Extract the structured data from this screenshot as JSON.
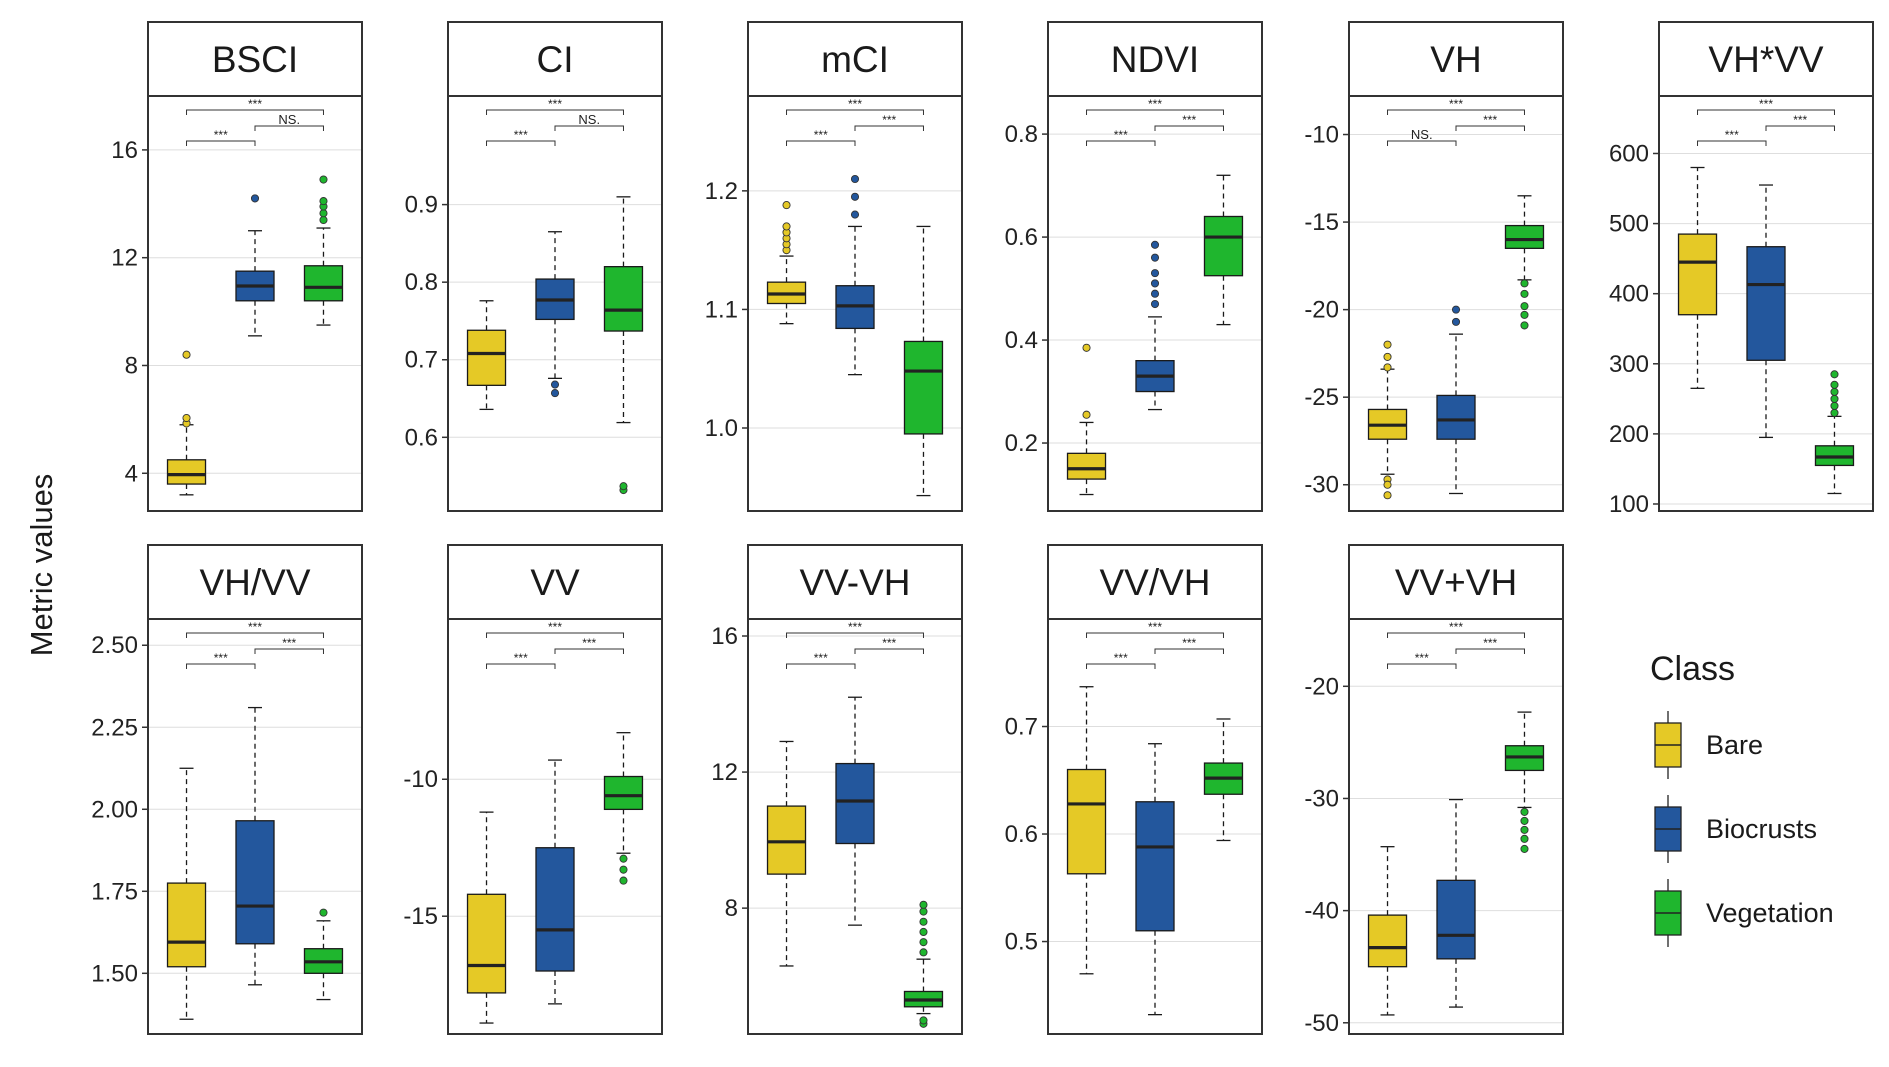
{
  "chart_data": {
    "type": "box",
    "ylabel": "Metric values",
    "legend": {
      "title": "Class",
      "position": "right",
      "entries": [
        {
          "label": "Bare",
          "color": "#E5C926"
        },
        {
          "label": "Biocrusts",
          "color": "#23579D"
        },
        {
          "label": "Vegetation",
          "color": "#1FB62E"
        }
      ]
    },
    "significance_labels": {
      "strong": "***",
      "ns": "NS."
    },
    "panels": [
      {
        "title": "BSCI",
        "ylim": [
          2.6,
          18.0
        ],
        "ticks": [
          4,
          8,
          12,
          16
        ],
        "tick_labels": [
          "4",
          "8",
          "12",
          "16"
        ],
        "boxes": [
          {
            "class": "Bare",
            "q1": 3.6,
            "median": 3.95,
            "q3": 4.5,
            "whisker_low": 3.2,
            "whisker_high": 5.8,
            "outliers": [
              5.85,
              6.05,
              8.4
            ]
          },
          {
            "class": "Biocrusts",
            "q1": 10.4,
            "median": 10.95,
            "q3": 11.5,
            "whisker_low": 9.1,
            "whisker_high": 13.0,
            "outliers": [
              14.2
            ]
          },
          {
            "class": "Vegetation",
            "q1": 10.4,
            "median": 10.9,
            "q3": 11.7,
            "whisker_low": 9.5,
            "whisker_high": 13.1,
            "outliers": [
              13.4,
              13.65,
              13.9,
              14.1,
              14.9
            ]
          }
        ],
        "comparisons": [
          {
            "from": 1,
            "to": 3,
            "label": "***"
          },
          {
            "from": 1,
            "to": 2,
            "label": "***"
          },
          {
            "from": 2,
            "to": 3,
            "label": "NS."
          }
        ]
      },
      {
        "title": "CI",
        "ylim": [
          0.505,
          1.04
        ],
        "ticks": [
          0.6,
          0.7,
          0.8,
          0.9
        ],
        "tick_labels": [
          "0.6",
          "0.7",
          "0.8",
          "0.9"
        ],
        "boxes": [
          {
            "class": "Bare",
            "q1": 0.667,
            "median": 0.708,
            "q3": 0.738,
            "whisker_low": 0.636,
            "whisker_high": 0.776,
            "outliers": []
          },
          {
            "class": "Biocrusts",
            "q1": 0.752,
            "median": 0.777,
            "q3": 0.804,
            "whisker_low": 0.676,
            "whisker_high": 0.865,
            "outliers": [
              0.657,
              0.668
            ]
          },
          {
            "class": "Vegetation",
            "q1": 0.737,
            "median": 0.764,
            "q3": 0.82,
            "whisker_low": 0.619,
            "whisker_high": 0.91,
            "outliers": [
              0.532,
              0.537
            ]
          }
        ],
        "comparisons": [
          {
            "from": 1,
            "to": 3,
            "label": "***"
          },
          {
            "from": 1,
            "to": 2,
            "label": "***"
          },
          {
            "from": 2,
            "to": 3,
            "label": "NS."
          }
        ]
      },
      {
        "title": "mCI",
        "ylim": [
          0.93,
          1.28
        ],
        "ticks": [
          1.0,
          1.1,
          1.2
        ],
        "tick_labels": [
          "1.0",
          "1.1",
          "1.2"
        ],
        "boxes": [
          {
            "class": "Bare",
            "q1": 1.105,
            "median": 1.113,
            "q3": 1.123,
            "whisker_low": 1.088,
            "whisker_high": 1.145,
            "outliers": [
              1.15,
              1.155,
              1.16,
              1.165,
              1.17,
              1.188
            ]
          },
          {
            "class": "Biocrusts",
            "q1": 1.084,
            "median": 1.103,
            "q3": 1.12,
            "whisker_low": 1.045,
            "whisker_high": 1.17,
            "outliers": [
              1.18,
              1.195,
              1.21
            ]
          },
          {
            "class": "Vegetation",
            "q1": 0.995,
            "median": 1.048,
            "q3": 1.073,
            "whisker_low": 0.943,
            "whisker_high": 1.17,
            "outliers": []
          }
        ],
        "comparisons": [
          {
            "from": 1,
            "to": 3,
            "label": "***"
          },
          {
            "from": 1,
            "to": 2,
            "label": "***"
          },
          {
            "from": 2,
            "to": 3,
            "label": "***"
          }
        ]
      },
      {
        "title": "NDVI",
        "ylim": [
          0.068,
          0.874
        ],
        "ticks": [
          0.2,
          0.4,
          0.6,
          0.8
        ],
        "tick_labels": [
          "0.2",
          "0.4",
          "0.6",
          "0.8"
        ],
        "boxes": [
          {
            "class": "Bare",
            "q1": 0.13,
            "median": 0.15,
            "q3": 0.18,
            "whisker_low": 0.1,
            "whisker_high": 0.24,
            "outliers": [
              0.255,
              0.385
            ]
          },
          {
            "class": "Biocrusts",
            "q1": 0.3,
            "median": 0.33,
            "q3": 0.36,
            "whisker_low": 0.265,
            "whisker_high": 0.445,
            "outliers": [
              0.47,
              0.49,
              0.51,
              0.53,
              0.56,
              0.585
            ]
          },
          {
            "class": "Vegetation",
            "q1": 0.525,
            "median": 0.6,
            "q3": 0.64,
            "whisker_low": 0.43,
            "whisker_high": 0.72,
            "outliers": []
          }
        ],
        "comparisons": [
          {
            "from": 1,
            "to": 3,
            "label": "***"
          },
          {
            "from": 1,
            "to": 2,
            "label": "***"
          },
          {
            "from": 2,
            "to": 3,
            "label": "***"
          }
        ]
      },
      {
        "title": "VH",
        "ylim": [
          -31.5,
          -7.8
        ],
        "ticks": [
          -30,
          -25,
          -20,
          -15,
          -10
        ],
        "tick_labels": [
          "-30",
          "-25",
          "-20",
          "-15",
          "-10"
        ],
        "boxes": [
          {
            "class": "Bare",
            "q1": -27.4,
            "median": -26.6,
            "q3": -25.7,
            "whisker_low": -29.4,
            "whisker_high": -23.4,
            "outliers": [
              -22.0,
              -22.7,
              -23.3,
              -29.7,
              -30.0,
              -30.6
            ]
          },
          {
            "class": "Biocrusts",
            "q1": -27.4,
            "median": -26.3,
            "q3": -24.9,
            "whisker_low": -30.5,
            "whisker_high": -21.4,
            "outliers": [
              -20.0,
              -20.7
            ]
          },
          {
            "class": "Vegetation",
            "q1": -16.5,
            "median": -16.0,
            "q3": -15.2,
            "whisker_low": -18.3,
            "whisker_high": -13.5,
            "outliers": [
              -18.5,
              -19.1,
              -19.8,
              -20.3,
              -20.9
            ]
          }
        ],
        "comparisons": [
          {
            "from": 1,
            "to": 3,
            "label": "***"
          },
          {
            "from": 1,
            "to": 2,
            "label": "NS."
          },
          {
            "from": 2,
            "to": 3,
            "label": "***"
          }
        ]
      },
      {
        "title": "VH*VV",
        "ylim": [
          90,
          682
        ],
        "ticks": [
          100,
          200,
          300,
          400,
          500,
          600
        ],
        "tick_labels": [
          "100",
          "200",
          "300",
          "400",
          "500",
          "600"
        ],
        "boxes": [
          {
            "class": "Bare",
            "q1": 370,
            "median": 445,
            "q3": 485,
            "whisker_low": 265,
            "whisker_high": 580,
            "outliers": []
          },
          {
            "class": "Biocrusts",
            "q1": 305,
            "median": 413,
            "q3": 467,
            "whisker_low": 195,
            "whisker_high": 555,
            "outliers": []
          },
          {
            "class": "Vegetation",
            "q1": 155,
            "median": 167,
            "q3": 183,
            "whisker_low": 115,
            "whisker_high": 225,
            "outliers": [
              230,
              240,
              250,
              260,
              270,
              285
            ]
          }
        ],
        "comparisons": [
          {
            "from": 1,
            "to": 3,
            "label": "***"
          },
          {
            "from": 1,
            "to": 2,
            "label": "***"
          },
          {
            "from": 2,
            "to": 3,
            "label": "***"
          }
        ]
      },
      {
        "title": "VH/VV",
        "ylim": [
          1.315,
          2.58
        ],
        "ticks": [
          1.5,
          1.75,
          2.0,
          2.25,
          2.5
        ],
        "tick_labels": [
          "1.50",
          "1.75",
          "2.00",
          "2.25",
          "2.50"
        ],
        "boxes": [
          {
            "class": "Bare",
            "q1": 1.52,
            "median": 1.595,
            "q3": 1.775,
            "whisker_low": 1.36,
            "whisker_high": 2.125,
            "outliers": []
          },
          {
            "class": "Biocrusts",
            "q1": 1.59,
            "median": 1.705,
            "q3": 1.965,
            "whisker_low": 1.465,
            "whisker_high": 2.31,
            "outliers": []
          },
          {
            "class": "Vegetation",
            "q1": 1.5,
            "median": 1.535,
            "q3": 1.575,
            "whisker_low": 1.42,
            "whisker_high": 1.66,
            "outliers": [
              1.685
            ]
          }
        ],
        "comparisons": [
          {
            "from": 1,
            "to": 3,
            "label": "***"
          },
          {
            "from": 1,
            "to": 2,
            "label": "***"
          },
          {
            "from": 2,
            "to": 3,
            "label": "***"
          }
        ]
      },
      {
        "title": "VV",
        "ylim": [
          -19.3,
          -4.15
        ],
        "ticks": [
          -15,
          -10
        ],
        "tick_labels": [
          "-15",
          "-10"
        ],
        "boxes": [
          {
            "class": "Bare",
            "q1": -17.8,
            "median": -16.8,
            "q3": -14.2,
            "whisker_low": -18.9,
            "whisker_high": -11.2,
            "outliers": []
          },
          {
            "class": "Biocrusts",
            "q1": -17.0,
            "median": -15.5,
            "q3": -12.5,
            "whisker_low": -18.2,
            "whisker_high": -9.3,
            "outliers": []
          },
          {
            "class": "Vegetation",
            "q1": -11.1,
            "median": -10.6,
            "q3": -9.9,
            "whisker_low": -12.7,
            "whisker_high": -8.3,
            "outliers": [
              -12.9,
              -13.3,
              -13.7
            ]
          }
        ],
        "comparisons": [
          {
            "from": 1,
            "to": 3,
            "label": "***"
          },
          {
            "from": 1,
            "to": 2,
            "label": "***"
          },
          {
            "from": 2,
            "to": 3,
            "label": "***"
          }
        ]
      },
      {
        "title": "VV-VH",
        "ylim": [
          4.3,
          16.5
        ],
        "ticks": [
          8,
          12,
          16
        ],
        "tick_labels": [
          "8",
          "12",
          "16"
        ],
        "boxes": [
          {
            "class": "Bare",
            "q1": 9.0,
            "median": 9.95,
            "q3": 11.0,
            "whisker_low": 6.3,
            "whisker_high": 12.9,
            "outliers": []
          },
          {
            "class": "Biocrusts",
            "q1": 9.9,
            "median": 11.15,
            "q3": 12.25,
            "whisker_low": 7.5,
            "whisker_high": 14.2,
            "outliers": []
          },
          {
            "class": "Vegetation",
            "q1": 5.1,
            "median": 5.3,
            "q3": 5.55,
            "whisker_low": 4.9,
            "whisker_high": 6.5,
            "outliers": [
              4.6,
              4.7,
              6.7,
              7.0,
              7.3,
              7.6,
              7.9,
              8.1
            ]
          }
        ],
        "comparisons": [
          {
            "from": 1,
            "to": 3,
            "label": "***"
          },
          {
            "from": 1,
            "to": 2,
            "label": "***"
          },
          {
            "from": 2,
            "to": 3,
            "label": "***"
          }
        ]
      },
      {
        "title": "VV/VH",
        "ylim": [
          0.414,
          0.8
        ],
        "ticks": [
          0.5,
          0.6,
          0.7
        ],
        "tick_labels": [
          "0.5",
          "0.6",
          "0.7"
        ],
        "boxes": [
          {
            "class": "Bare",
            "q1": 0.563,
            "median": 0.628,
            "q3": 0.66,
            "whisker_low": 0.47,
            "whisker_high": 0.737,
            "outliers": []
          },
          {
            "class": "Biocrusts",
            "q1": 0.51,
            "median": 0.588,
            "q3": 0.63,
            "whisker_low": 0.432,
            "whisker_high": 0.684,
            "outliers": []
          },
          {
            "class": "Vegetation",
            "q1": 0.637,
            "median": 0.652,
            "q3": 0.666,
            "whisker_low": 0.594,
            "whisker_high": 0.707,
            "outliers": []
          }
        ],
        "comparisons": [
          {
            "from": 1,
            "to": 3,
            "label": "***"
          },
          {
            "from": 1,
            "to": 2,
            "label": "***"
          },
          {
            "from": 2,
            "to": 3,
            "label": "***"
          }
        ]
      },
      {
        "title": "VV+VH",
        "ylim": [
          -51.0,
          -14.0
        ],
        "ticks": [
          -50,
          -40,
          -30,
          -20
        ],
        "tick_labels": [
          "-50",
          "-40",
          "-30",
          "-20"
        ],
        "boxes": [
          {
            "class": "Bare",
            "q1": -45.0,
            "median": -43.3,
            "q3": -40.4,
            "whisker_low": -49.3,
            "whisker_high": -34.3,
            "outliers": []
          },
          {
            "class": "Biocrusts",
            "q1": -44.3,
            "median": -42.2,
            "q3": -37.3,
            "whisker_low": -48.6,
            "whisker_high": -30.1,
            "outliers": []
          },
          {
            "class": "Vegetation",
            "q1": -27.5,
            "median": -26.3,
            "q3": -25.3,
            "whisker_low": -30.8,
            "whisker_high": -22.3,
            "outliers": [
              -31.2,
              -32.0,
              -32.8,
              -33.6,
              -34.5
            ]
          }
        ],
        "comparisons": [
          {
            "from": 1,
            "to": 3,
            "label": "***"
          },
          {
            "from": 1,
            "to": 2,
            "label": "***"
          },
          {
            "from": 2,
            "to": 3,
            "label": "***"
          }
        ]
      }
    ]
  }
}
